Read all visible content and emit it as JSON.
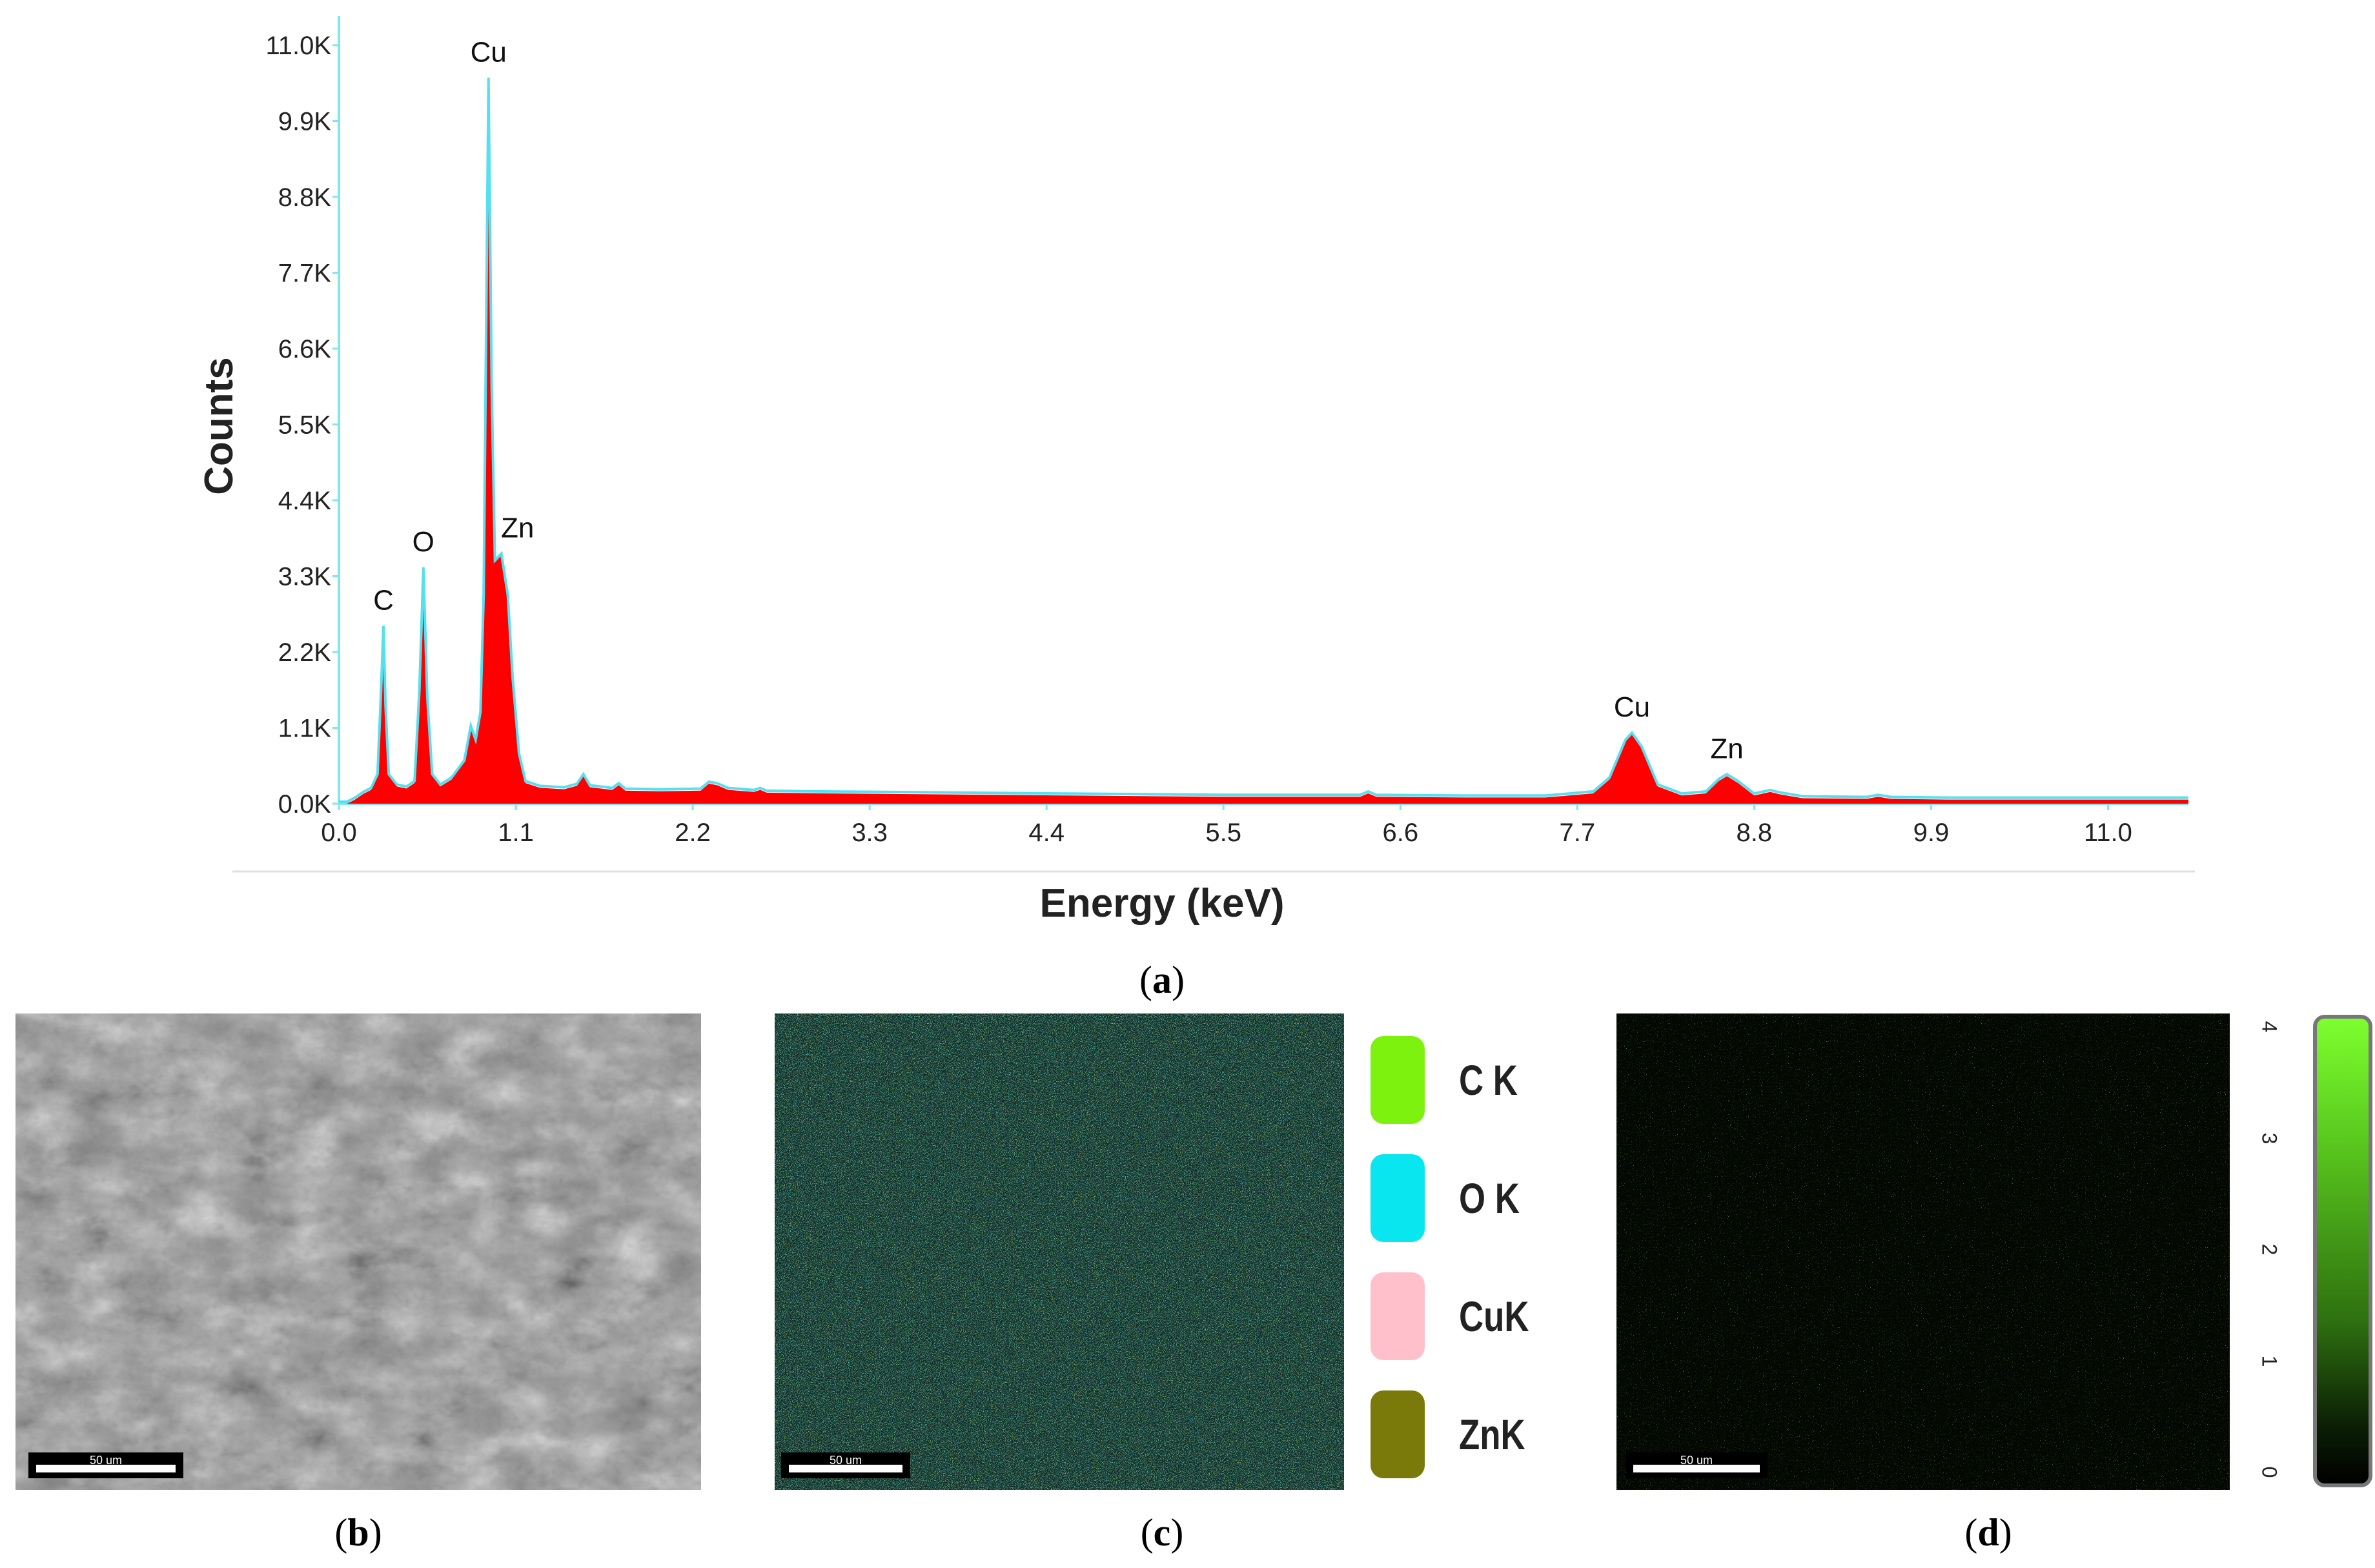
{
  "chart_data": {
    "type": "line",
    "title": "",
    "xlabel": "Energy (keV)",
    "ylabel": "Counts",
    "xlim": [
      0,
      11.5
    ],
    "ylim": [
      0,
      11000
    ],
    "x_ticks": [
      "0.0",
      "1.1",
      "2.2",
      "3.3",
      "4.4",
      "5.5",
      "6.6",
      "7.7",
      "8.8",
      "9.9",
      "11.0"
    ],
    "y_ticks": [
      "0.0K",
      "1.1K",
      "2.2K",
      "3.3K",
      "4.4K",
      "5.5K",
      "6.6K",
      "7.7K",
      "8.8K",
      "9.9K",
      "11.0K"
    ],
    "fill_color": "#ff0000",
    "envelope_color": "#55e0f0",
    "peaks": [
      {
        "label": "C",
        "x": 0.277,
        "y": 2550
      },
      {
        "label": "O",
        "x": 0.525,
        "y": 3400
      },
      {
        "label": "Cu",
        "x": 0.93,
        "y": 10500
      },
      {
        "label": "Zn",
        "x": 1.01,
        "y": 3600
      },
      {
        "label": "Cu",
        "x": 8.04,
        "y": 1000
      },
      {
        "label": "Zn",
        "x": 8.63,
        "y": 400
      }
    ],
    "spectrum": [
      [
        0.0,
        0
      ],
      [
        0.05,
        0
      ],
      [
        0.1,
        60
      ],
      [
        0.15,
        140
      ],
      [
        0.2,
        200
      ],
      [
        0.24,
        400
      ],
      [
        0.26,
        1500
      ],
      [
        0.277,
        2550
      ],
      [
        0.29,
        1400
      ],
      [
        0.31,
        400
      ],
      [
        0.36,
        250
      ],
      [
        0.42,
        220
      ],
      [
        0.47,
        300
      ],
      [
        0.5,
        1600
      ],
      [
        0.525,
        3400
      ],
      [
        0.55,
        1500
      ],
      [
        0.58,
        400
      ],
      [
        0.63,
        250
      ],
      [
        0.7,
        350
      ],
      [
        0.78,
        600
      ],
      [
        0.82,
        1100
      ],
      [
        0.85,
        900
      ],
      [
        0.88,
        1300
      ],
      [
        0.9,
        3000
      ],
      [
        0.93,
        10500
      ],
      [
        0.95,
        6000
      ],
      [
        0.97,
        3500
      ],
      [
        1.01,
        3600
      ],
      [
        1.05,
        3000
      ],
      [
        1.08,
        1800
      ],
      [
        1.12,
        700
      ],
      [
        1.16,
        300
      ],
      [
        1.25,
        230
      ],
      [
        1.4,
        210
      ],
      [
        1.48,
        260
      ],
      [
        1.52,
        400
      ],
      [
        1.56,
        240
      ],
      [
        1.7,
        200
      ],
      [
        1.74,
        270
      ],
      [
        1.78,
        190
      ],
      [
        2.0,
        180
      ],
      [
        2.25,
        190
      ],
      [
        2.3,
        290
      ],
      [
        2.35,
        270
      ],
      [
        2.42,
        200
      ],
      [
        2.58,
        170
      ],
      [
        2.62,
        200
      ],
      [
        2.66,
        160
      ],
      [
        3.0,
        150
      ],
      [
        3.5,
        140
      ],
      [
        4.0,
        130
      ],
      [
        4.5,
        120
      ],
      [
        5.0,
        110
      ],
      [
        5.5,
        100
      ],
      [
        6.0,
        100
      ],
      [
        6.35,
        100
      ],
      [
        6.4,
        150
      ],
      [
        6.45,
        100
      ],
      [
        7.0,
        90
      ],
      [
        7.5,
        90
      ],
      [
        7.8,
        150
      ],
      [
        7.9,
        350
      ],
      [
        8.0,
        900
      ],
      [
        8.04,
        1000
      ],
      [
        8.1,
        800
      ],
      [
        8.2,
        250
      ],
      [
        8.35,
        120
      ],
      [
        8.5,
        150
      ],
      [
        8.58,
        330
      ],
      [
        8.63,
        400
      ],
      [
        8.7,
        300
      ],
      [
        8.8,
        120
      ],
      [
        8.9,
        170
      ],
      [
        8.95,
        140
      ],
      [
        9.1,
        80
      ],
      [
        9.5,
        70
      ],
      [
        9.57,
        100
      ],
      [
        9.65,
        70
      ],
      [
        10.0,
        60
      ],
      [
        10.5,
        60
      ],
      [
        11.0,
        60
      ],
      [
        11.5,
        60
      ]
    ]
  },
  "captions": {
    "a": "a",
    "b": "b",
    "c": "c",
    "d": "d"
  },
  "scale_bars": {
    "b": "50 um",
    "c": "50 um",
    "d": "50 um"
  },
  "legend": [
    {
      "label": "C K",
      "color": "#7df20f"
    },
    {
      "label": "O K",
      "color": "#0ae6f0"
    },
    {
      "label": "CuK",
      "color": "#ffc0cc"
    },
    {
      "label": "ZnK",
      "color": "#7a7a0a"
    }
  ],
  "colorbar_ticks": [
    "4",
    "3",
    "2",
    "1",
    "0"
  ]
}
